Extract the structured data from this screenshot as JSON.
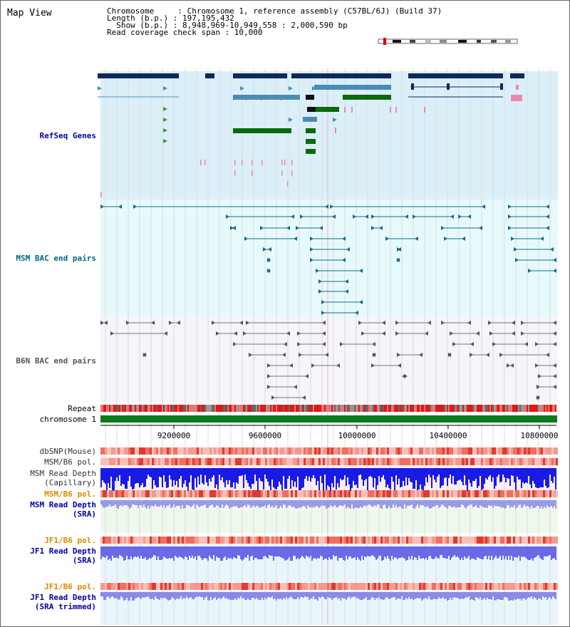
{
  "header": {
    "title": "Map View",
    "chromosome_line": "Chromosome     : Chromosome 1, reference assembly (C57BL/6J) (Build 37)",
    "length_line": "Length (b.p.) : 197,195,432",
    "show_line": "  Show (b.p.) : 8,948,969-10,949,558 : 2,000,590 bp",
    "coverage_line": "Read coverage check span : 10,000"
  },
  "tracks": {
    "refseq": "RefSeq Genes",
    "msm_bac": "MSM BAC end pairs",
    "b6n_bac": "B6N BAC end pairs",
    "repeat": "Repeat",
    "chromosome": "chromosome 1",
    "dbsnp": "dbSNP(Mouse)",
    "msm_b6_pol_1": "MSM/B6 pol.",
    "msm_read_depth_cap_1": "MSM Read Depth",
    "msm_read_depth_cap_2": "(Capillary)",
    "msm_b6_pol_2": "MSM/B6 pol.",
    "msm_read_depth_sra_1": "MSM Read Depth",
    "msm_read_depth_sra_2": "(SRA)",
    "jf1_b6_pol_1": "JF1/B6 pol.",
    "jf1_read_depth_sra_1": "JF1 Read Depth",
    "jf1_read_depth_sra_2": "(SRA)",
    "jf1_b6_pol_2": "JF1/B6 pol.",
    "jf1_read_depth_trim_1": "JF1 Read Depth",
    "jf1_read_depth_trim_2": "(SRA trimmed)"
  },
  "axis": {
    "ticks": [
      "9200000",
      "9600000",
      "10000000",
      "10400000",
      "10800000"
    ]
  },
  "colors": {
    "refseq_bg": "#dbeff9",
    "msm_bg": "#e6f9fb",
    "b6n_bg": "#f5f5fa",
    "label_blue": "#0000aa",
    "label_teal": "#006680",
    "label_gray": "#555555",
    "label_orange": "#dd8800"
  }
}
